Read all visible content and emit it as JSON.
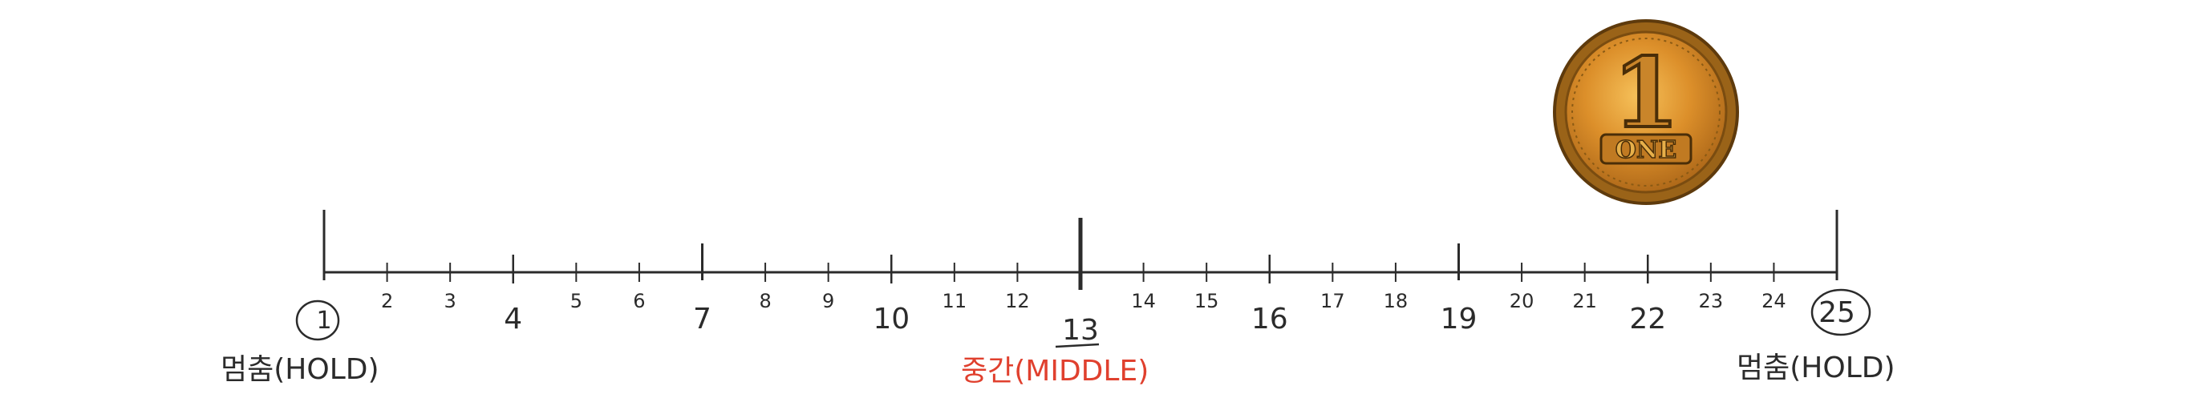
{
  "number_line": {
    "numbers": [
      "1",
      "2",
      "3",
      "4",
      "5",
      "6",
      "7",
      "8",
      "9",
      "10",
      "11",
      "12",
      "13",
      "14",
      "15",
      "16",
      "17",
      "18",
      "19",
      "20",
      "21",
      "22",
      "23",
      "24",
      "25"
    ],
    "start_label": "멈춤(HOLD)",
    "middle_label": "중간(MIDDLE)",
    "end_label": "멈춤(HOLD)",
    "circled_numbers": [
      "1",
      "25"
    ],
    "underlined_number": "13"
  },
  "coin": {
    "numeral": "1",
    "word": "ONE"
  },
  "colors": {
    "line": "#2b2b2b",
    "middle_label": "#e0402e",
    "coin_gold": "#d9962f",
    "coin_rim": "#8a5a14"
  }
}
